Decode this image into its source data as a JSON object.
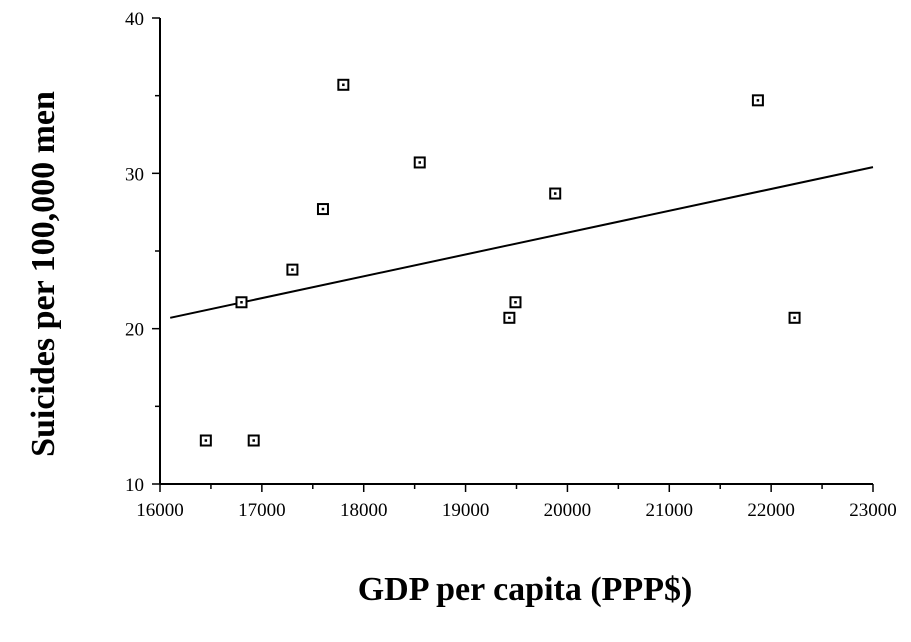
{
  "chart_data": {
    "type": "scatter",
    "title": "",
    "xlabel": "GDP per capita (PPP$)",
    "ylabel": "Suicides per 100,000 men",
    "xlim": [
      16000,
      23000
    ],
    "ylim": [
      10,
      40
    ],
    "x_ticks": [
      16000,
      17000,
      18000,
      19000,
      20000,
      21000,
      22000,
      23000
    ],
    "x_tick_labels": [
      "16000",
      "17000",
      "18000",
      "19000",
      "20000",
      "21000",
      "22000",
      "23000"
    ],
    "y_ticks": [
      10,
      20,
      30,
      40
    ],
    "y_tick_labels": [
      "10",
      "20",
      "30",
      "40"
    ],
    "grid": false,
    "legend": "none",
    "marker": "hollow-square-with-dot",
    "points": [
      {
        "x": 16450,
        "y": 12.8
      },
      {
        "x": 16800,
        "y": 21.7
      },
      {
        "x": 16920,
        "y": 12.8
      },
      {
        "x": 17300,
        "y": 23.8
      },
      {
        "x": 17600,
        "y": 27.7
      },
      {
        "x": 17800,
        "y": 35.7
      },
      {
        "x": 18550,
        "y": 30.7
      },
      {
        "x": 19430,
        "y": 20.7
      },
      {
        "x": 19490,
        "y": 21.7
      },
      {
        "x": 19880,
        "y": 28.7
      },
      {
        "x": 21870,
        "y": 34.7
      },
      {
        "x": 22230,
        "y": 20.7
      }
    ],
    "trendline": {
      "x": [
        16100,
        23000
      ],
      "y": [
        20.7,
        30.4
      ]
    }
  }
}
